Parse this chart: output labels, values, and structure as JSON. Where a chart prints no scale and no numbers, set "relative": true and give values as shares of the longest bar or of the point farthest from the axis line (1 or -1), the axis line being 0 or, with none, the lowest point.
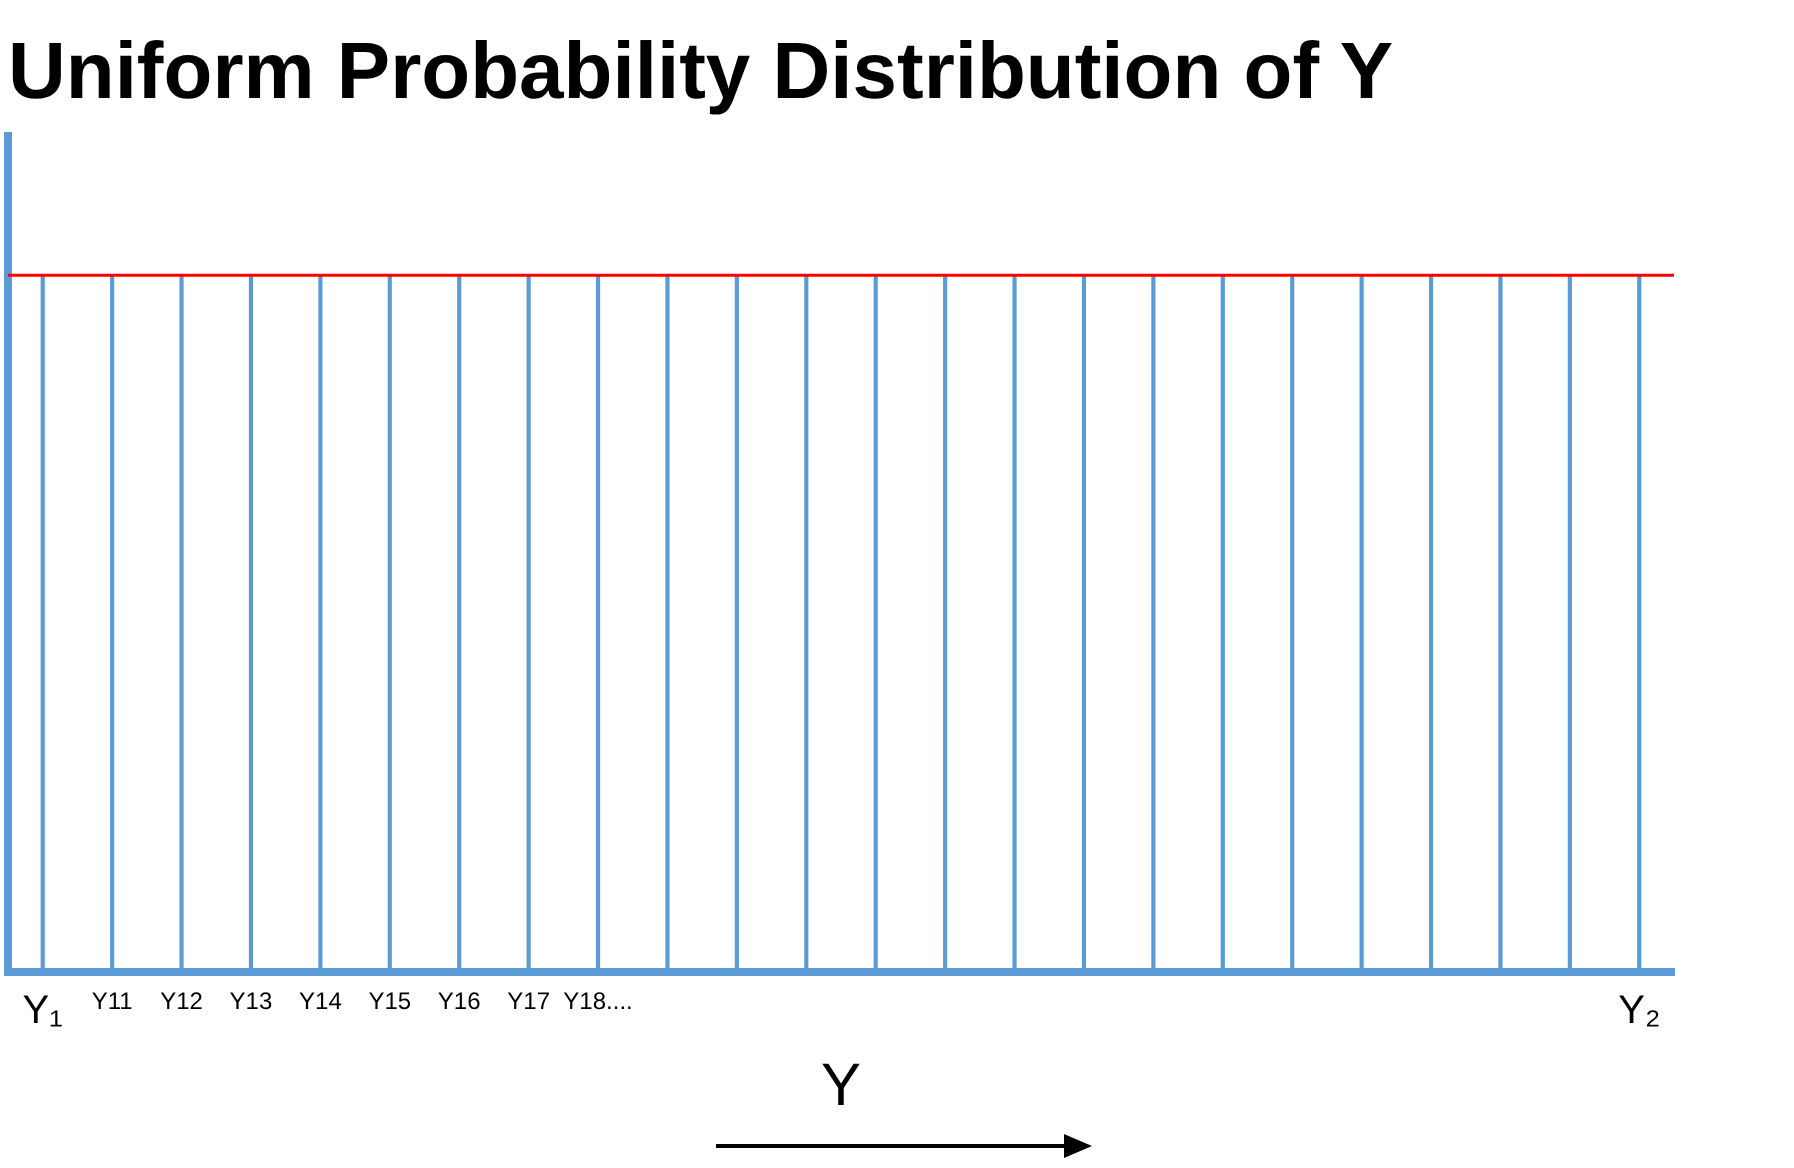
{
  "chart_data": {
    "type": "bar",
    "title": "Uniform Probability Distribution of Y",
    "xlabel": "Y",
    "categories": [
      "Y₁",
      "Y11",
      "Y12",
      "Y13",
      "Y14",
      "Y15",
      "Y16",
      "Y17",
      "Y18....",
      null,
      null,
      null,
      null,
      null,
      null,
      null,
      null,
      null,
      null,
      null,
      null,
      null,
      null,
      "Y₂"
    ],
    "values": [
      1,
      1,
      1,
      1,
      1,
      1,
      1,
      1,
      1,
      1,
      1,
      1,
      1,
      1,
      1,
      1,
      1,
      1,
      1,
      1,
      1,
      1,
      1,
      1
    ],
    "color": "#5b9bd5",
    "relative": true,
    "grid": false,
    "legend": false,
    "tick_labels": "x",
    "ref_lines": [
      {
        "axis": "y",
        "value": 1,
        "color": "#ff0000"
      }
    ]
  }
}
